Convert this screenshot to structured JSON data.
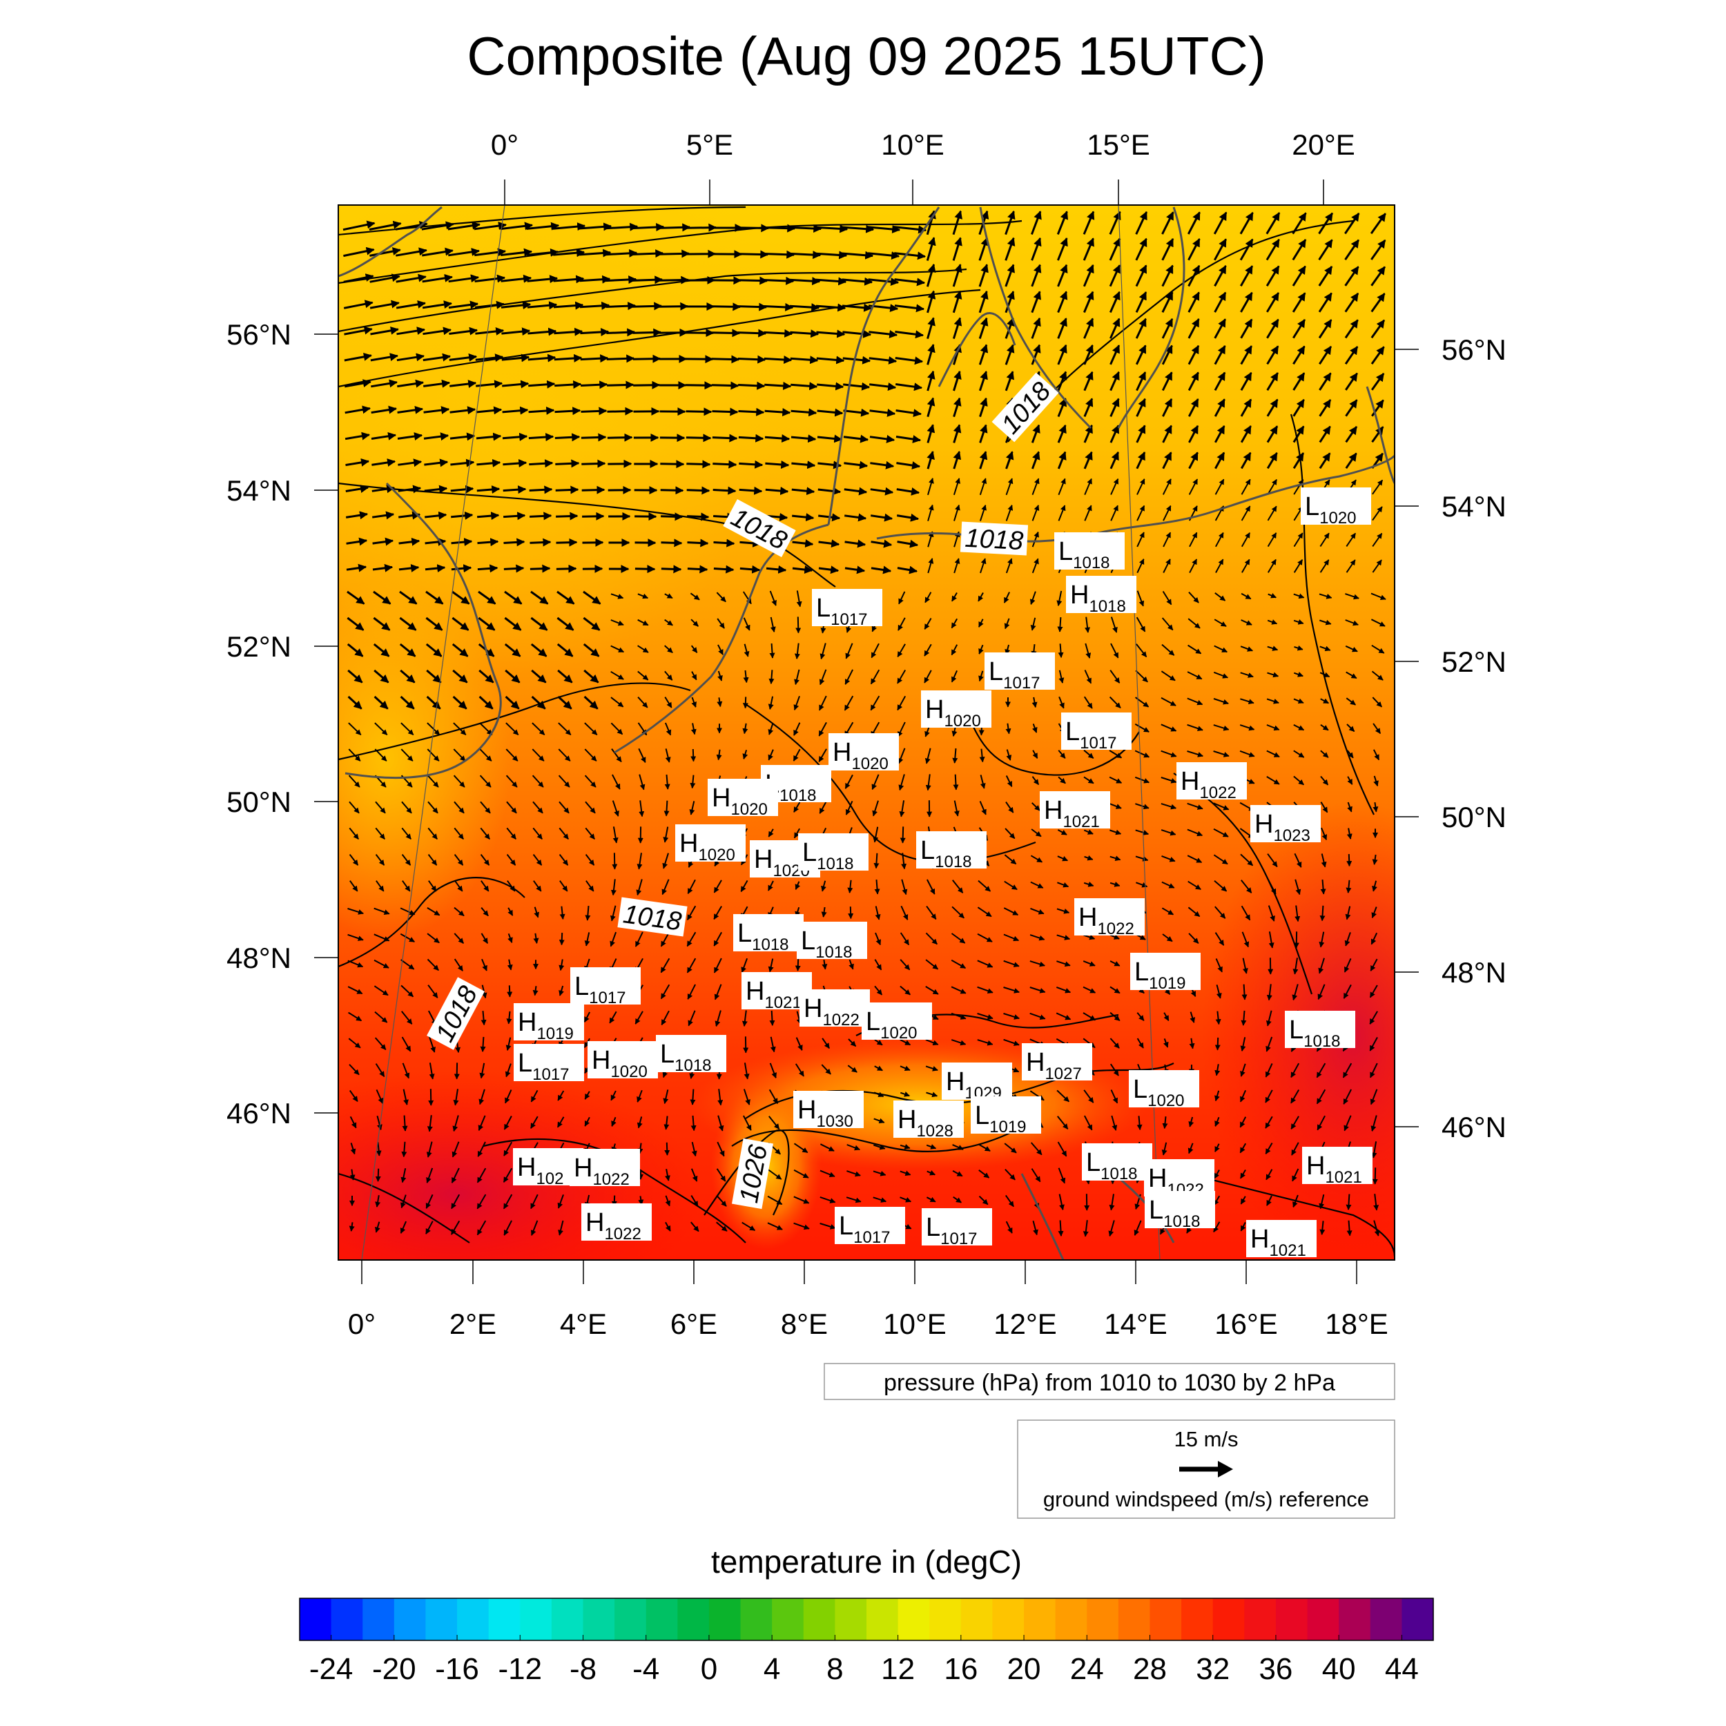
{
  "title": "Composite (Aug 09 2025 15UTC)",
  "top_lon_ticks": [
    "0°",
    "5°E",
    "10°E",
    "15°E",
    "20°E"
  ],
  "bottom_lon_ticks": [
    "0°",
    "2°E",
    "4°E",
    "6°E",
    "8°E",
    "10°E",
    "12°E",
    "14°E",
    "16°E",
    "18°E"
  ],
  "left_lat_ticks": [
    "56°N",
    "54°N",
    "52°N",
    "50°N",
    "48°N",
    "46°N"
  ],
  "right_lat_ticks": [
    "56°N",
    "54°N",
    "52°N",
    "50°N",
    "48°N",
    "46°N"
  ],
  "contour_info": "pressure (hPa) from 1010 to 1030 by 2 hPa",
  "wind_reference": {
    "speed_label": "15 m/s",
    "caption": "ground windspeed (m/s) reference"
  },
  "colorbar": {
    "title": "temperature in (degC)",
    "min": -26,
    "max": 46,
    "step": 2,
    "tick_labels": [
      "-24",
      "-20",
      "-16",
      "-12",
      "-8",
      "-4",
      "0",
      "4",
      "8",
      "12",
      "16",
      "20",
      "24",
      "28",
      "32",
      "36",
      "40",
      "44"
    ],
    "stops": [
      "#0000ff",
      "#00a0ff",
      "#00f0f0",
      "#00d090",
      "#00b030",
      "#80d000",
      "#f0f000",
      "#ffc000",
      "#ff8000",
      "#ff2000",
      "#e00030",
      "#500090"
    ]
  },
  "contour_labels": [
    "1018",
    "1018",
    "1018",
    "1018",
    "1018",
    "1026"
  ],
  "pressure_centers": [
    {
      "type": "L",
      "value": "1020"
    },
    {
      "type": "L",
      "value": "1018"
    },
    {
      "type": "H",
      "value": "1018"
    },
    {
      "type": "L",
      "value": "1017"
    },
    {
      "type": "L",
      "value": "1017"
    },
    {
      "type": "H",
      "value": "1020"
    },
    {
      "type": "L",
      "value": "1017"
    },
    {
      "type": "H",
      "value": "1020"
    },
    {
      "type": "L",
      "value": "1018"
    },
    {
      "type": "H",
      "value": "1020"
    },
    {
      "type": "H",
      "value": "1022"
    },
    {
      "type": "H",
      "value": "1021"
    },
    {
      "type": "H",
      "value": "1023"
    },
    {
      "type": "H",
      "value": "1020"
    },
    {
      "type": "H",
      "value": "1020"
    },
    {
      "type": "L",
      "value": "1018"
    },
    {
      "type": "L",
      "value": "1018"
    },
    {
      "type": "H",
      "value": "1022"
    },
    {
      "type": "L",
      "value": "1018"
    },
    {
      "type": "L",
      "value": "1018"
    },
    {
      "type": "L",
      "value": "1019"
    },
    {
      "type": "L",
      "value": "1017"
    },
    {
      "type": "H",
      "value": "1021"
    },
    {
      "type": "H",
      "value": "1022"
    },
    {
      "type": "L",
      "value": "1020"
    },
    {
      "type": "H",
      "value": "1019"
    },
    {
      "type": "L",
      "value": "1017"
    },
    {
      "type": "H",
      "value": "1020"
    },
    {
      "type": "L",
      "value": "1018"
    },
    {
      "type": "H",
      "value": "1027"
    },
    {
      "type": "L",
      "value": "1018"
    },
    {
      "type": "H",
      "value": "1029"
    },
    {
      "type": "H",
      "value": "1030"
    },
    {
      "type": "H",
      "value": "1028"
    },
    {
      "type": "L",
      "value": "1019"
    },
    {
      "type": "L",
      "value": "1020"
    },
    {
      "type": "H",
      "value": "102"
    },
    {
      "type": "H",
      "value": "1022"
    },
    {
      "type": "L",
      "value": "1018"
    },
    {
      "type": "H",
      "value": "1022"
    },
    {
      "type": "H",
      "value": "1021"
    },
    {
      "type": "L",
      "value": "1018"
    },
    {
      "type": "H",
      "value": "1022"
    },
    {
      "type": "L",
      "value": "1017"
    },
    {
      "type": "L",
      "value": "1017"
    },
    {
      "type": "H",
      "value": "1021"
    }
  ]
}
